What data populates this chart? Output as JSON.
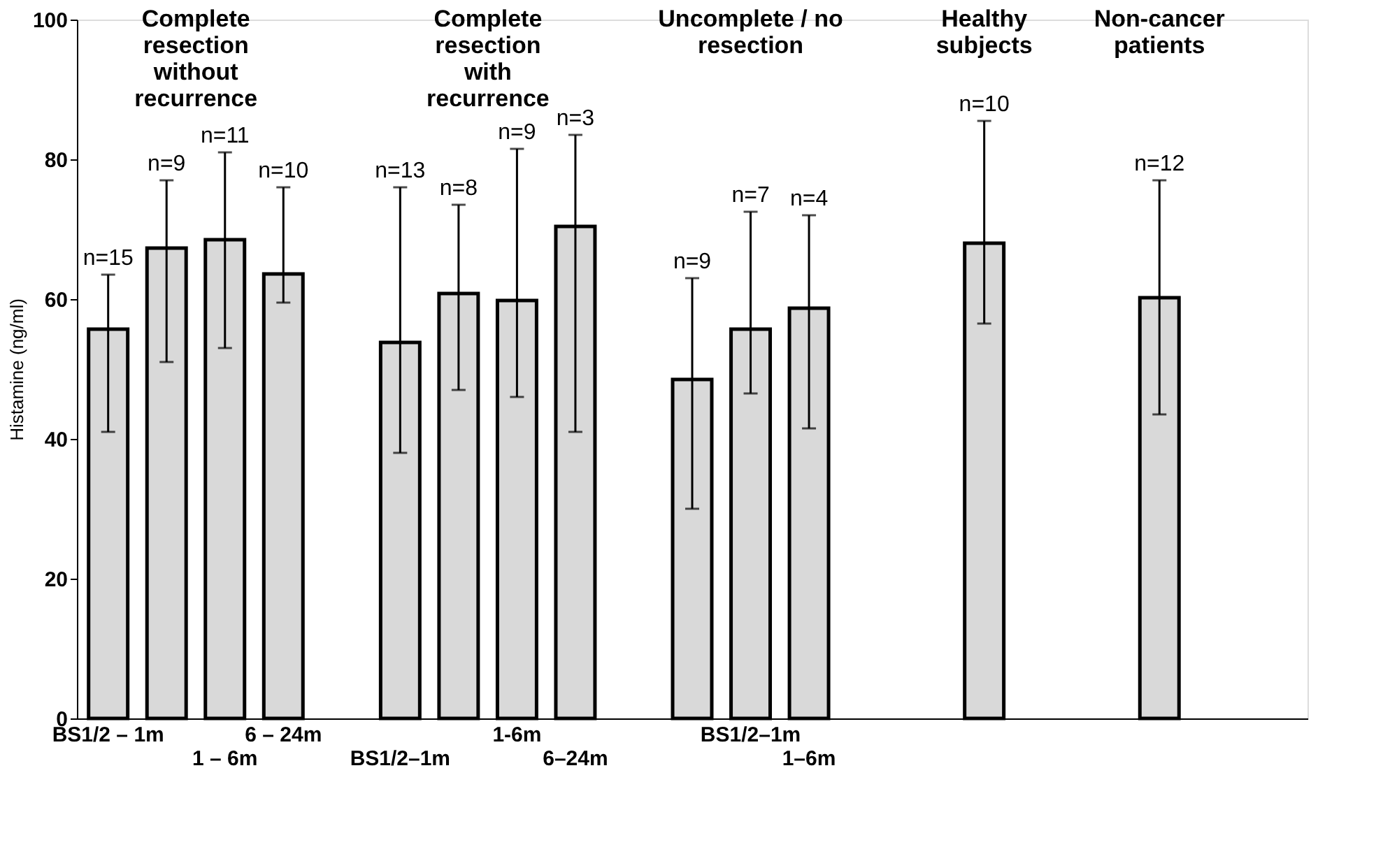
{
  "chart_data": {
    "type": "bar",
    "ylabel": "Histamine (ng/ml)",
    "ylim": [
      0,
      100
    ],
    "yticks": [
      0,
      20,
      40,
      60,
      80,
      100
    ],
    "color": "#d9d9d9",
    "categories": [
      "BS1/2 – 1m",
      null,
      "1 – 6m",
      "6 – 24m",
      null,
      "BS1/2–1m",
      null,
      "1-6m",
      "6–24m",
      null,
      null,
      "BS1/2–1m",
      "1–6m",
      null,
      null,
      null,
      null,
      null,
      null,
      null,
      null
    ],
    "values": [
      55.7,
      67.3,
      68.5,
      63.6,
      null,
      53.8,
      60.8,
      59.8,
      70.4,
      null,
      48.5,
      55.7,
      58.7,
      null,
      null,
      68.0,
      null,
      null,
      60.2,
      null,
      null
    ],
    "errors": [
      [
        41,
        63.5
      ],
      [
        51,
        77
      ],
      [
        53,
        81
      ],
      [
        59.5,
        76
      ],
      null,
      [
        38,
        76
      ],
      [
        47,
        73.5
      ],
      [
        46,
        81.5
      ],
      [
        41,
        83.5
      ],
      null,
      [
        30,
        63
      ],
      [
        46.5,
        72.5
      ],
      [
        41.5,
        72
      ],
      null,
      null,
      [
        56.5,
        85.5
      ],
      null,
      null,
      [
        43.5,
        77
      ],
      null,
      null
    ],
    "annotations": [
      "Complete\nresection\nwithout\nrecurrence",
      "Complete\nresection\nwith\nrecurrence",
      "Uncomplete / no\nresection",
      "Healthy\nsubjects",
      "Non-cancer\npatients",
      "n=15",
      "n=9",
      "n=11",
      "n=10",
      "n=13",
      "n=8",
      "n=9",
      "n=3",
      "n=9",
      "n=7",
      "n=4",
      "n=10",
      "n=12"
    ]
  }
}
